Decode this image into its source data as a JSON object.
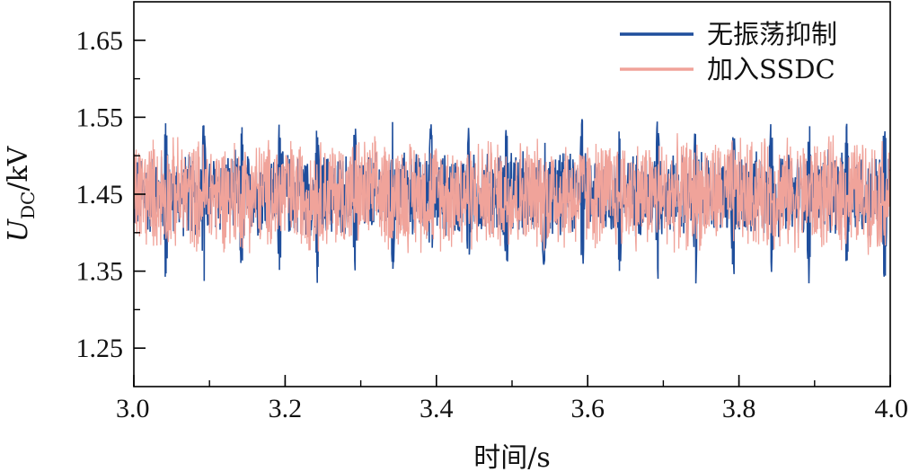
{
  "chart_data": {
    "type": "line",
    "title": "",
    "xlabel": "时间/s",
    "ylabel": {
      "main": "U",
      "subscript": "DC",
      "unit": "/kV"
    },
    "xlim": [
      3.0,
      4.0
    ],
    "ylim": [
      1.2,
      1.7
    ],
    "x_ticks": [
      3.0,
      3.2,
      3.4,
      3.6,
      3.8,
      4.0
    ],
    "x_tick_labels": [
      "3.0",
      "3.2",
      "3.4",
      "3.6",
      "3.8",
      "4.0"
    ],
    "x_minor_step": 0.1,
    "y_ticks": [
      1.25,
      1.35,
      1.45,
      1.55,
      1.65
    ],
    "y_tick_labels": [
      "1.25",
      "1.35",
      "1.45",
      "1.55",
      "1.65"
    ],
    "y_minor_step": 0.05,
    "grid": false,
    "legend_position": "top-right",
    "series": [
      {
        "name": "无振荡抑制",
        "color": "#1f4e9c",
        "signal": {
          "mean": 1.45,
          "fast_band": [
            1.39,
            1.51
          ],
          "burst_period_s": 0.05,
          "burst_min": 1.33,
          "burst_max": 1.55,
          "sample_step_s": 0.0005
        }
      },
      {
        "name": "加入SSDC",
        "color": "#f0a39a",
        "signal": {
          "mean": 1.45,
          "fast_band": [
            1.37,
            1.53
          ],
          "sample_step_s": 0.0005
        }
      }
    ]
  }
}
